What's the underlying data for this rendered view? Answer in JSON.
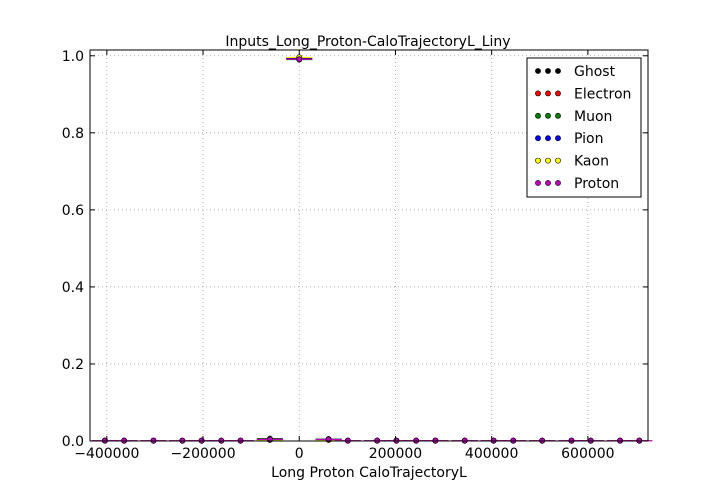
{
  "chart_data": {
    "type": "scatter",
    "title": "Inputs_Long_Proton-CaloTrajectoryL_Liny",
    "xlabel": "Long Proton CaloTrajectoryL",
    "ylabel": "",
    "xlim": [
      -435000,
      725000
    ],
    "ylim": [
      0.0,
      1.015
    ],
    "xticks": [
      -400000,
      -200000,
      0,
      200000,
      400000,
      600000
    ],
    "xtick_labels": [
      "−400000",
      "−200000",
      "0",
      "200000",
      "400000",
      "600000"
    ],
    "yticks": [
      0.0,
      0.2,
      0.4,
      0.6,
      0.8,
      1.0
    ],
    "ytick_labels": [
      "0.0",
      "0.2",
      "0.4",
      "0.6",
      "0.8",
      "1.0"
    ],
    "grid": true,
    "legend_position": "top-right",
    "x_bins": [
      -404000,
      -364000,
      -303000,
      -243000,
      -203000,
      -162000,
      -122000,
      -61000,
      0,
      61000,
      101000,
      162000,
      202000,
      243000,
      283000,
      344000,
      404000,
      445000,
      505000,
      566000,
      606000,
      667000,
      707000
    ],
    "series": [
      {
        "name": "Ghost",
        "color": "#000000",
        "values": [
          0.001,
          0.001,
          0.001,
          0.001,
          0.001,
          0.001,
          0.001,
          0.006,
          0.993,
          0.005,
          0.001,
          0.001,
          0.001,
          0.001,
          0.001,
          0.001,
          0.001,
          0.001,
          0.001,
          0.001,
          0.001,
          0.001,
          0.001
        ]
      },
      {
        "name": "Electron",
        "color": "#ff0000",
        "values": [
          0.001,
          0.001,
          0.001,
          0.001,
          0.001,
          0.001,
          0.001,
          0.004,
          0.995,
          0.004,
          0.001,
          0.001,
          0.001,
          0.001,
          0.001,
          0.001,
          0.001,
          0.001,
          0.001,
          0.001,
          0.001,
          0.001,
          0.001
        ]
      },
      {
        "name": "Muon",
        "color": "#008000",
        "values": [
          0.001,
          0.001,
          0.001,
          0.001,
          0.001,
          0.001,
          0.001,
          0.003,
          0.99,
          0.003,
          0.001,
          0.001,
          0.001,
          0.001,
          0.001,
          0.001,
          0.001,
          0.001,
          0.001,
          0.001,
          0.001,
          0.001,
          0.001
        ]
      },
      {
        "name": "Pion",
        "color": "#0000ff",
        "values": [
          0.001,
          0.001,
          0.001,
          0.001,
          0.001,
          0.001,
          0.001,
          0.004,
          0.992,
          0.004,
          0.001,
          0.001,
          0.001,
          0.001,
          0.001,
          0.001,
          0.001,
          0.001,
          0.001,
          0.001,
          0.001,
          0.001,
          0.001
        ]
      },
      {
        "name": "Kaon",
        "color": "#ffff00",
        "values": [
          0.001,
          0.001,
          0.001,
          0.001,
          0.001,
          0.001,
          0.001,
          0.003,
          0.996,
          0.003,
          0.001,
          0.001,
          0.001,
          0.001,
          0.001,
          0.001,
          0.001,
          0.001,
          0.001,
          0.001,
          0.001,
          0.001,
          0.001
        ]
      },
      {
        "name": "Proton",
        "color": "#bf00bf",
        "values": [
          0.001,
          0.001,
          0.001,
          0.001,
          0.001,
          0.001,
          0.001,
          0.004,
          0.991,
          0.004,
          0.001,
          0.001,
          0.001,
          0.001,
          0.001,
          0.001,
          0.001,
          0.001,
          0.001,
          0.001,
          0.001,
          0.001,
          0.001
        ]
      }
    ]
  }
}
